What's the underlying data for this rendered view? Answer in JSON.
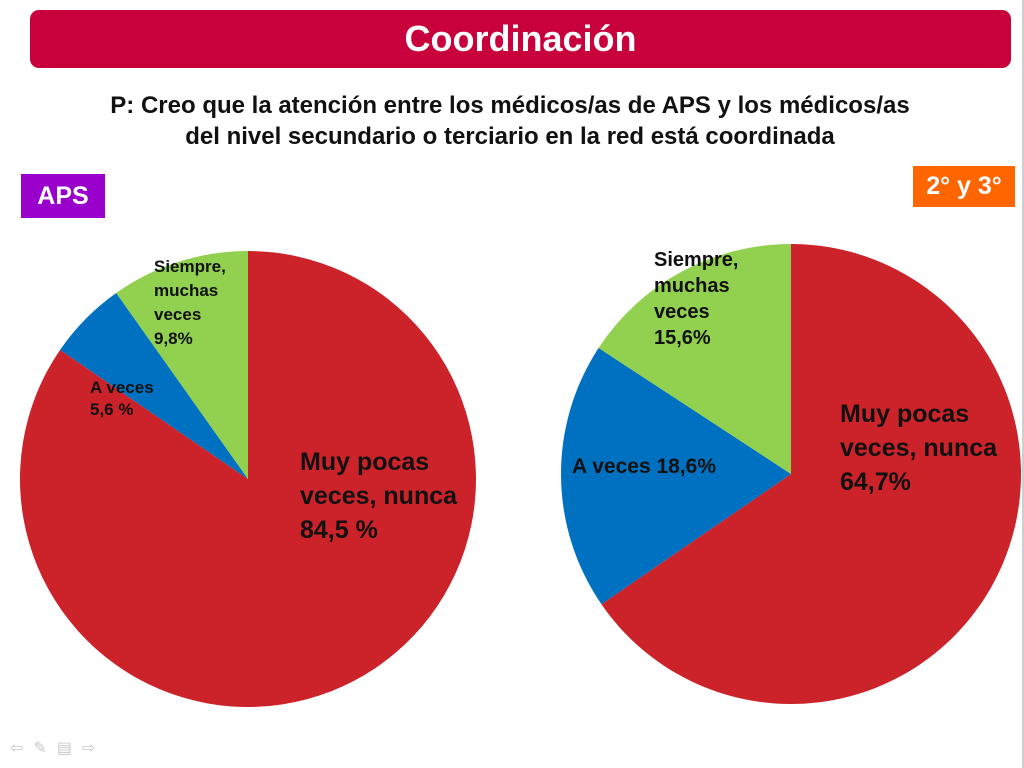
{
  "header": {
    "title": "Coordinación"
  },
  "question": {
    "line1": "P: Creo que la atención entre los médicos/as de APS y los médicos/as",
    "line2": "del nivel secundario o terciario en la red está coordinada"
  },
  "badges": {
    "aps": {
      "label": "APS",
      "color": "#9900cc"
    },
    "secondary": {
      "label": "2° y 3°",
      "color": "#ff6600"
    }
  },
  "colors": {
    "title_bar": "#c8003c",
    "red": "#cc2229",
    "blue": "#0070c0",
    "green": "#92d050"
  },
  "chart_data": [
    {
      "type": "pie",
      "name": "APS",
      "slices": [
        {
          "value": 84.5,
          "color": "#cc2229",
          "label_lines": [
            "Muy pocas",
            "veces, nunca",
            "84,5 %"
          ]
        },
        {
          "value": 5.6,
          "color": "#0070c0",
          "label_lines": [
            "A veces",
            "5,6 %"
          ]
        },
        {
          "value": 9.8,
          "color": "#92d050",
          "label_lines": [
            "Siempre,",
            "muchas",
            "veces",
            "9,8%"
          ]
        }
      ]
    },
    {
      "type": "pie",
      "name": "2° y 3°",
      "slices": [
        {
          "value": 64.7,
          "color": "#cc2229",
          "label_lines": [
            "Muy pocas",
            "veces, nunca",
            "64,7%"
          ]
        },
        {
          "value": 18.6,
          "color": "#0070c0",
          "label_lines": [
            "A veces 18,6%"
          ]
        },
        {
          "value": 15.6,
          "color": "#92d050",
          "label_lines": [
            "Siempre,",
            "muchas",
            "veces",
            "15,6%"
          ]
        }
      ]
    }
  ],
  "nav_icons": [
    "arrow-left-icon",
    "pen-icon",
    "menu-icon",
    "arrow-right-icon"
  ]
}
